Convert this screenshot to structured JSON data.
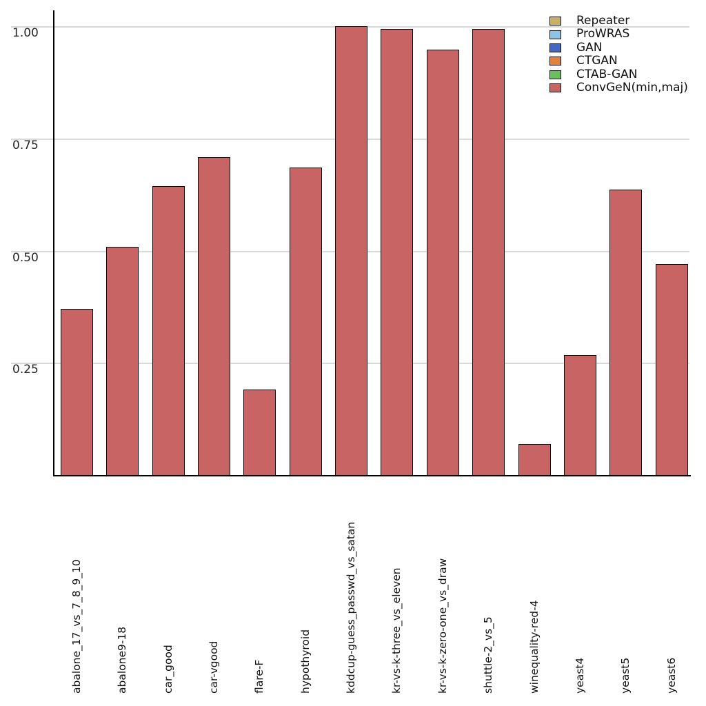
{
  "chart_data": {
    "type": "bar",
    "title": "",
    "xlabel": "",
    "ylabel": "",
    "categories": [
      "abalone_17_vs_7_8_9_10",
      "abalone9-18",
      "car_good",
      "car-vgood",
      "flare-F",
      "hypothyroid",
      "kddcup-guess_passwd_vs_satan",
      "kr-vs-k-three_vs_eleven",
      "kr-vs-k-zero-one_vs_draw",
      "shuttle-2_vs_5",
      "winequality-red-4",
      "yeast4",
      "yeast5",
      "yeast6"
    ],
    "series": [
      {
        "name": "ConvGeN(min,maj)",
        "color": "#c96465",
        "values": [
          0.372,
          0.51,
          0.645,
          0.71,
          0.192,
          0.687,
          1.002,
          0.995,
          0.95,
          0.996,
          0.071,
          0.269,
          0.637,
          0.472
        ]
      }
    ],
    "y_tick_labels": [
      "0.25",
      "0.50",
      "0.75",
      "1.00"
    ],
    "y_ticks": [
      0.25,
      0.5,
      0.75,
      1.0
    ],
    "ylim": [
      0,
      1.037
    ],
    "grid": "horizontal",
    "legend_position": "top-right",
    "legend_entries": [
      {
        "label": "Repeater",
        "color": "#c9b164"
      },
      {
        "label": "ProWRAS",
        "color": "#8fc3e6"
      },
      {
        "label": "GAN",
        "color": "#4268c6"
      },
      {
        "label": "CTGAN",
        "color": "#e08140"
      },
      {
        "label": "CTAB-GAN",
        "color": "#68c15b"
      },
      {
        "label": "ConvGeN(min,maj)",
        "color": "#c96465"
      }
    ],
    "bar_edge_color": "#000000"
  },
  "colors": {
    "background": "#ffffff",
    "gridline": "#d9d9d9",
    "axis": "#000000",
    "text": "#1a1a1a"
  }
}
